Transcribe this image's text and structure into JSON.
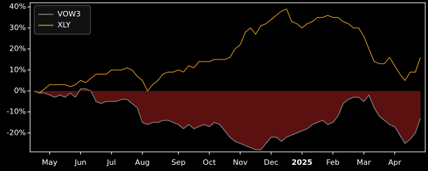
{
  "chart_data": {
    "type": "line",
    "categories": [
      null,
      null,
      null,
      "May",
      null,
      null,
      null,
      null,
      null,
      "Jun",
      null,
      null,
      null,
      null,
      null,
      "Jul",
      null,
      null,
      null,
      null,
      null,
      "Aug",
      null,
      null,
      null,
      null,
      null,
      null,
      "Sep",
      null,
      null,
      null,
      null,
      null,
      "Oct",
      null,
      null,
      null,
      null,
      null,
      "Nov",
      null,
      null,
      null,
      null,
      null,
      "Dec",
      null,
      null,
      null,
      null,
      null,
      "2025",
      null,
      null,
      null,
      null,
      null,
      "Feb",
      null,
      null,
      null,
      null,
      null,
      "Mar",
      null,
      null,
      null,
      null,
      null,
      "Apr",
      null,
      null,
      null,
      null,
      null
    ],
    "series": [
      {
        "name": "VOW3",
        "color": "#8e9c9c",
        "fill": "#5c1111",
        "values": [
          0,
          -1,
          -1,
          -2,
          -3,
          -2,
          -3,
          -1,
          -3,
          1,
          1,
          0,
          -5,
          -6,
          -5,
          -5,
          -5,
          -4,
          -4,
          -6,
          -8,
          -15,
          -16,
          -15,
          -15,
          -14,
          -14,
          -15,
          -16,
          -18,
          -16,
          -18,
          -17,
          -16,
          -17,
          -15,
          -16,
          -19,
          -22,
          -24,
          -25,
          -26,
          -27,
          -28,
          -28,
          -25,
          -22,
          -22,
          -24,
          -22,
          -21,
          -20,
          -19,
          -18,
          -16,
          -15,
          -14,
          -16,
          -15,
          -12,
          -6,
          -4,
          -3,
          -3,
          -5,
          -2,
          -8,
          -12,
          -14,
          -16,
          -17,
          -21,
          -25,
          -23,
          -20,
          -13
        ]
      },
      {
        "name": "XLY",
        "color": "#f5a623",
        "values": [
          0,
          -1,
          1,
          3,
          3,
          3,
          3,
          2,
          3,
          5,
          4,
          6,
          8,
          8,
          8,
          10,
          10,
          10,
          11,
          10,
          7,
          5,
          0,
          3,
          5,
          8,
          9,
          9,
          10,
          9,
          12,
          11,
          14,
          14,
          14,
          15,
          15,
          15,
          16,
          20,
          22,
          28,
          30,
          27,
          31,
          32,
          34,
          36,
          38,
          39,
          33,
          32,
          30,
          32,
          33,
          35,
          35,
          36,
          35,
          35,
          33,
          32,
          30,
          30,
          26,
          20,
          14,
          13,
          13,
          16,
          12,
          8,
          5,
          9,
          9,
          16
        ]
      }
    ],
    "ylim": [
      -29,
      42
    ],
    "yticks": [
      {
        "value": -20,
        "label": "-20%"
      },
      {
        "value": -10,
        "label": "-10%"
      },
      {
        "value": 0,
        "label": "0%"
      },
      {
        "value": 10,
        "label": "10%"
      },
      {
        "value": 20,
        "label": "20%"
      },
      {
        "value": 30,
        "label": "30%"
      },
      {
        "value": 40,
        "label": "40%"
      }
    ],
    "legend": "upper left"
  }
}
